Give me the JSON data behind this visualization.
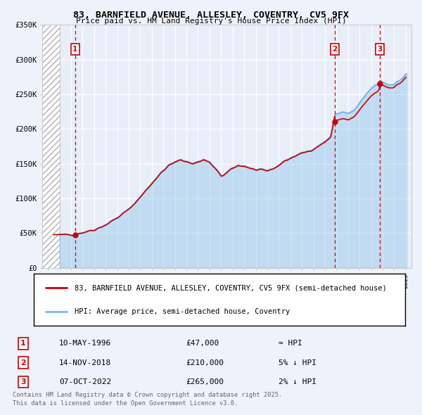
{
  "title": "83, BARNFIELD AVENUE, ALLESLEY, COVENTRY, CV5 9FX",
  "subtitle": "Price paid vs. HM Land Registry's House Price Index (HPI)",
  "background_color": "#eef2fa",
  "plot_bg_color": "#e8eef8",
  "grid_color": "#ffffff",
  "transactions": [
    {
      "date_num": 1996.36,
      "price": 47000,
      "label": "1"
    },
    {
      "date_num": 2018.87,
      "price": 210000,
      "label": "2"
    },
    {
      "date_num": 2022.77,
      "price": 265000,
      "label": "3"
    }
  ],
  "transaction_dates_str": [
    "10-MAY-1996",
    "14-NOV-2018",
    "07-OCT-2022"
  ],
  "transaction_prices_str": [
    "£47,000",
    "£210,000",
    "£265,000"
  ],
  "transaction_hpi_str": [
    "≈ HPI",
    "5% ↓ HPI",
    "2% ↓ HPI"
  ],
  "legend_entry1": "83, BARNFIELD AVENUE, ALLESLEY, COVENTRY, CV5 9FX (semi-detached house)",
  "legend_entry2": "HPI: Average price, semi-detached house, Coventry",
  "footer": "Contains HM Land Registry data © Crown copyright and database right 2025.\nThis data is licensed under the Open Government Licence v3.0.",
  "hpi_color": "#7ab8e8",
  "price_color": "#cc0000",
  "dashed_line_color": "#cc0000",
  "ylim": [
    0,
    350000
  ],
  "yticks": [
    0,
    50000,
    100000,
    150000,
    200000,
    250000,
    300000,
    350000
  ],
  "ytick_labels": [
    "£0",
    "£50K",
    "£100K",
    "£150K",
    "£200K",
    "£250K",
    "£300K",
    "£350K"
  ],
  "xlim": [
    1993.5,
    2025.5
  ],
  "hatch_region_end": 1995.0
}
